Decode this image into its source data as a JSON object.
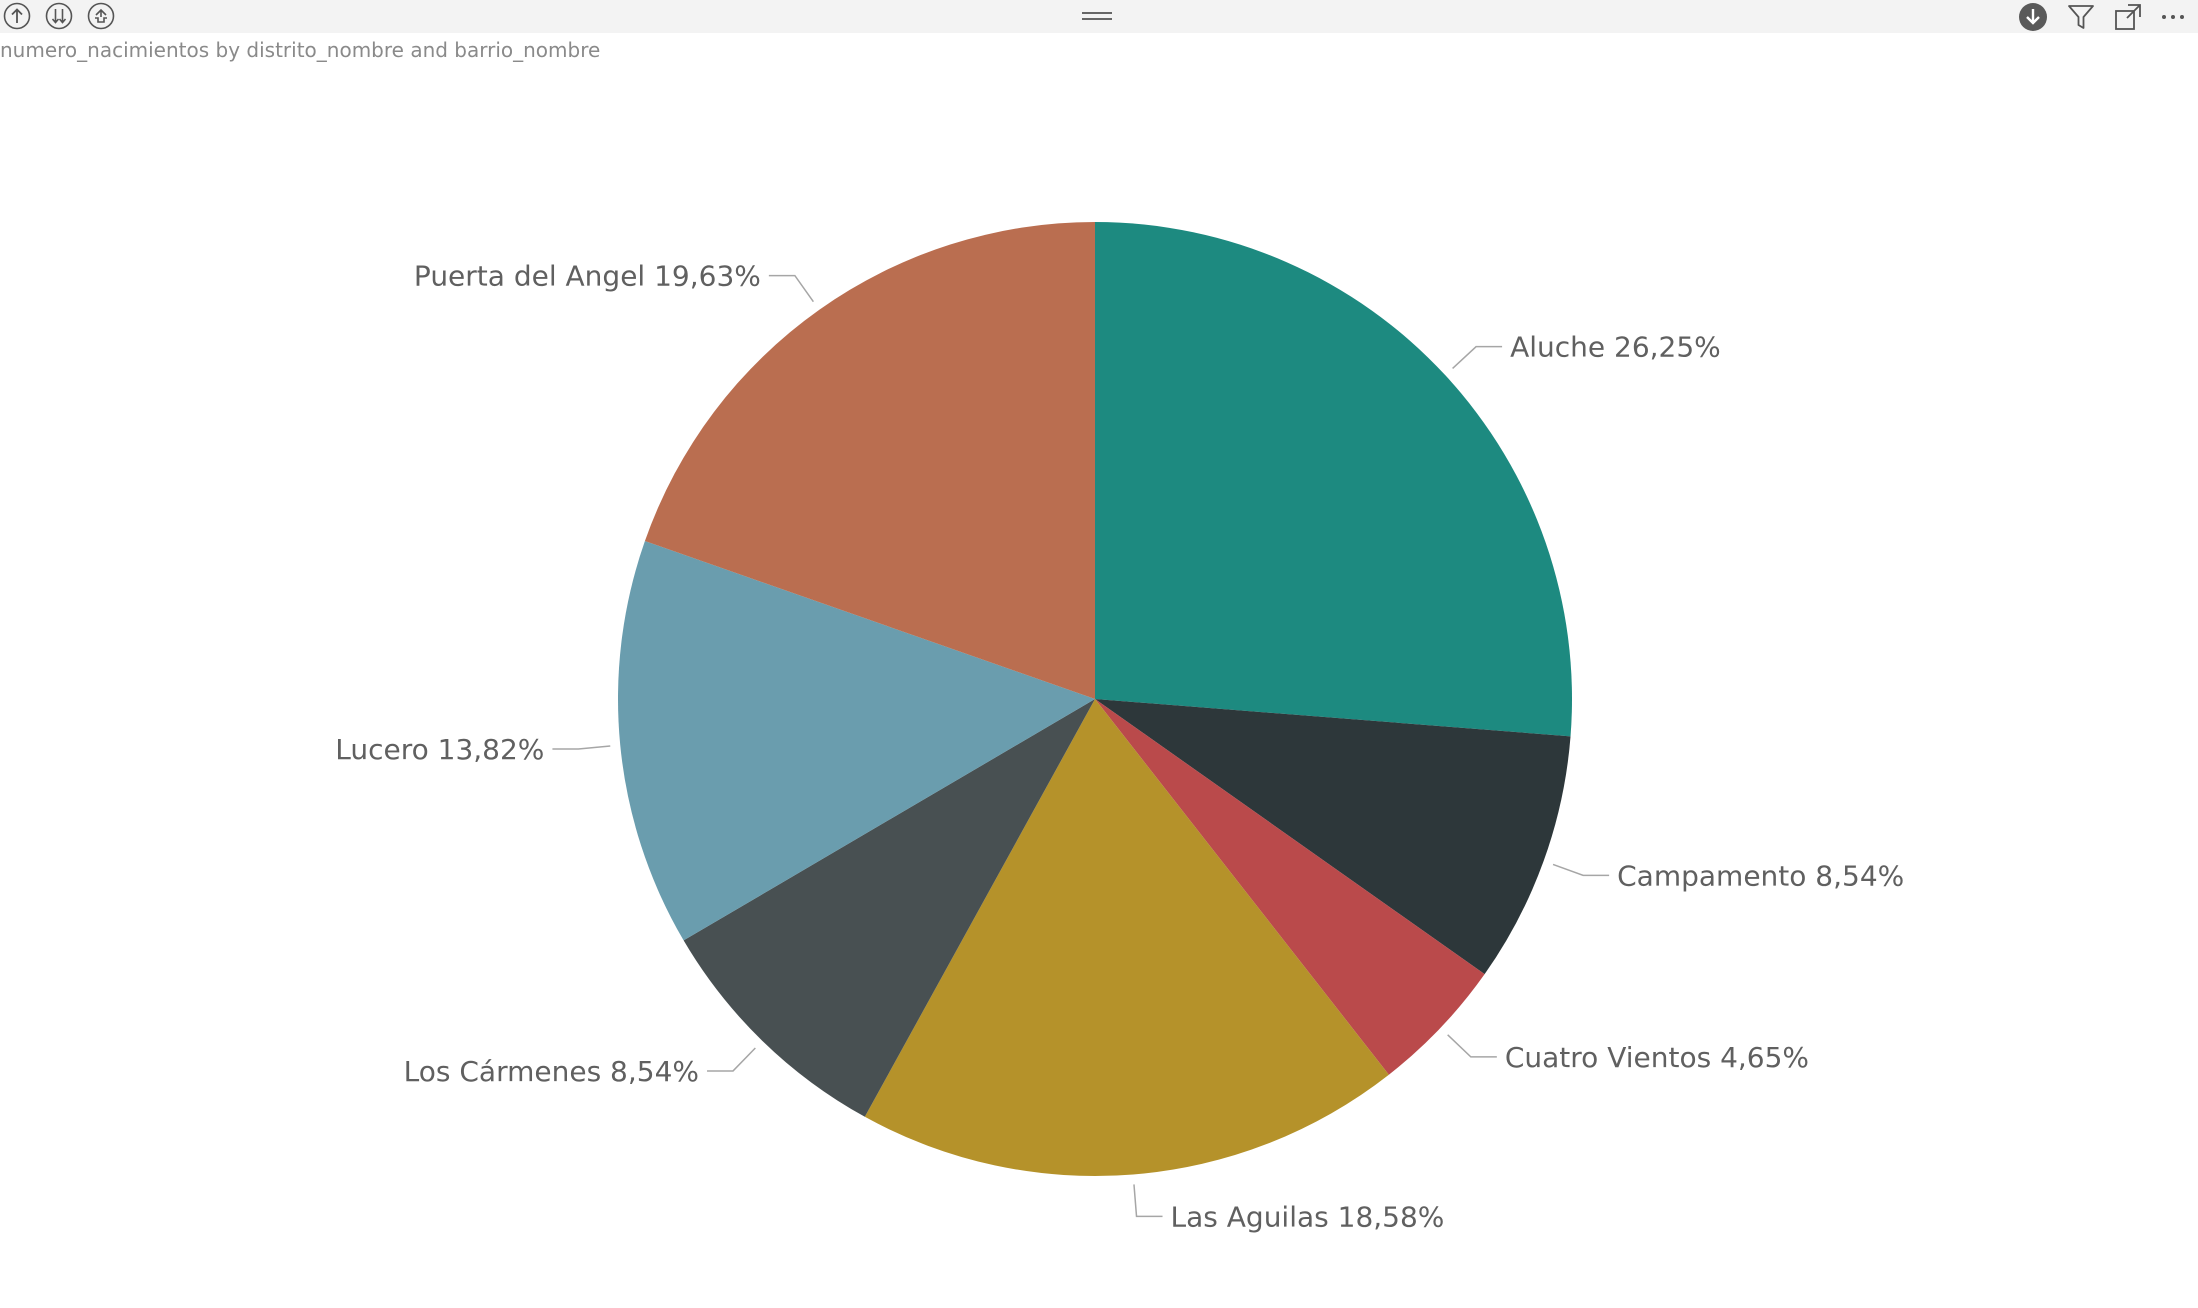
{
  "visual": {
    "title": "numero_nacimientos by distrito_nombre and barrio_nombre"
  },
  "header": {
    "left_icons": [
      "drill-up-icon",
      "go-to-next-level-icon",
      "expand-all-down-icon"
    ],
    "center_icon": "drag-handle-icon",
    "right_icons": [
      "drill-mode-icon",
      "filter-icon",
      "focus-mode-icon",
      "more-options-icon"
    ]
  },
  "chart_data": {
    "type": "pie",
    "title": "numero_nacimientos by distrito_nombre and barrio_nombre",
    "slices": [
      {
        "label": "Aluche",
        "value": 26.25,
        "display": "Aluche 26,25%",
        "color": "#1D8A80"
      },
      {
        "label": "Campamento",
        "value": 8.54,
        "display": "Campamento 8,54%",
        "color": "#2D373A"
      },
      {
        "label": "Cuatro Vientos",
        "value": 4.65,
        "display": "Cuatro Vientos 4,65%",
        "color": "#BA4A4B"
      },
      {
        "label": "Las Aguilas",
        "value": 18.58,
        "display": "Las Aguilas 18,58%",
        "color": "#B5922A"
      },
      {
        "label": "Los Cármenes",
        "value": 8.54,
        "display": "Los Cármenes 8,54%",
        "color": "#485052"
      },
      {
        "label": "Lucero",
        "value": 13.82,
        "display": "Lucero 13,82%",
        "color": "#6A9DAE"
      },
      {
        "label": "Puerta del Angel",
        "value": 19.63,
        "display": "Puerta del Angel 19,63%",
        "color": "#BA6E50"
      }
    ],
    "legend": "none"
  }
}
